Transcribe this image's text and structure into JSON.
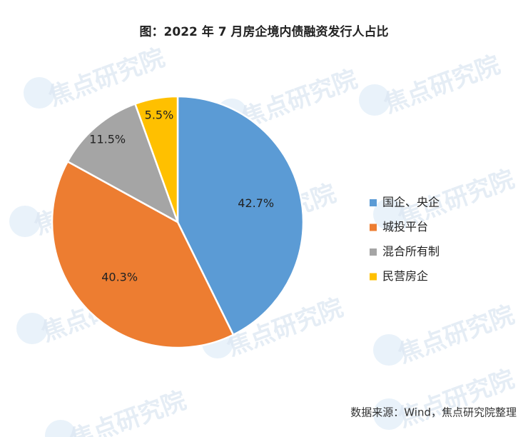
{
  "chart_data": {
    "type": "pie",
    "title": "图：2022 年 7 月房企境内债融资发行人占比",
    "categories": [
      "国企、央企",
      "城投平台",
      "混合所有制",
      "民营房企"
    ],
    "values": [
      42.7,
      40.3,
      11.5,
      5.5
    ],
    "value_labels": [
      "42.7%",
      "40.3%",
      "11.5%",
      "5.5%"
    ],
    "colors": [
      "#5b9bd5",
      "#ed7d31",
      "#a5a5a5",
      "#ffc000"
    ],
    "legend": "right",
    "source": "数据来源：Wind，焦点研究院整理",
    "watermark": "焦点研究院"
  }
}
